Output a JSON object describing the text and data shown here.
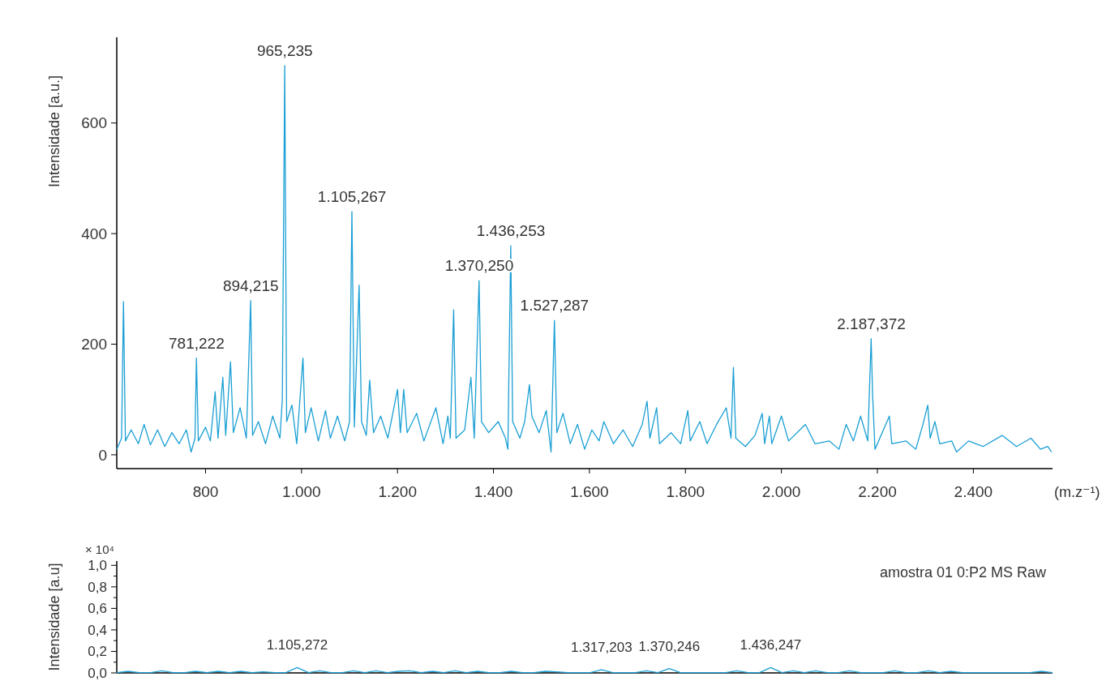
{
  "chart_data": [
    {
      "type": "line",
      "ylabel": "Intensidade [a.u.]",
      "xlabel": "(m.z⁻¹)",
      "xlim": [
        615,
        2565
      ],
      "ylim": [
        -25,
        755
      ],
      "xticks": [
        800,
        {
          "value": 1000,
          "label": "1.000"
        },
        {
          "value": 1200,
          "label": "1.200"
        },
        {
          "value": 1400,
          "label": "1.400"
        },
        {
          "value": 1600,
          "label": "1.600"
        },
        {
          "value": 1800,
          "label": "1.800"
        },
        {
          "value": 2000,
          "label": "2.000"
        },
        {
          "value": 2200,
          "label": "2.200"
        },
        {
          "value": 2400,
          "label": "2.400"
        }
      ],
      "yticks": [
        0,
        200,
        400,
        600
      ],
      "annotations": [
        {
          "text": "781,222",
          "x": 781.222,
          "y": 175
        },
        {
          "text": "894,215",
          "x": 894.215,
          "y": 279
        },
        {
          "text": "965,235",
          "x": 965.235,
          "y": 704
        },
        {
          "text": "1.105,267",
          "x": 1105.267,
          "y": 440
        },
        {
          "text": "1.370,250",
          "x": 1370.25,
          "y": 315
        },
        {
          "text": "1.436,253",
          "x": 1436.253,
          "y": 378
        },
        {
          "text": "1.527,287",
          "x": 1527.287,
          "y": 243
        },
        {
          "text": "2.187,372",
          "x": 2187.372,
          "y": 210
        }
      ],
      "series": [
        {
          "color": "#1a9fd4",
          "x": [
            615,
            625,
            629,
            633,
            645,
            660,
            672,
            685,
            700,
            715,
            730,
            745,
            760,
            770,
            778,
            781,
            785,
            800,
            810,
            820,
            826,
            836,
            842,
            852,
            858,
            872,
            885,
            894,
            898,
            910,
            925,
            940,
            955,
            960,
            965,
            969,
            980,
            990,
            1003,
            1008,
            1020,
            1035,
            1050,
            1060,
            1075,
            1090,
            1100,
            1105,
            1110,
            1120,
            1125,
            1135,
            1142,
            1150,
            1165,
            1180,
            1200,
            1206,
            1213,
            1220,
            1240,
            1255,
            1280,
            1295,
            1305,
            1310,
            1317,
            1322,
            1340,
            1353,
            1360,
            1370,
            1375,
            1390,
            1410,
            1425,
            1430,
            1436,
            1440,
            1455,
            1465,
            1475,
            1480,
            1495,
            1510,
            1520,
            1527,
            1532,
            1545,
            1560,
            1575,
            1590,
            1605,
            1620,
            1630,
            1650,
            1670,
            1690,
            1710,
            1720,
            1726,
            1740,
            1746,
            1770,
            1790,
            1805,
            1810,
            1830,
            1845,
            1865,
            1885,
            1895,
            1900,
            1905,
            1925,
            1945,
            1960,
            1965,
            1975,
            1980,
            2000,
            2015,
            2050,
            2070,
            2100,
            2120,
            2135,
            2150,
            2165,
            2180,
            2187,
            2190,
            2195,
            2210,
            2225,
            2230,
            2260,
            2280,
            2295,
            2305,
            2310,
            2320,
            2330,
            2355,
            2365,
            2390,
            2420,
            2460,
            2490,
            2520,
            2540,
            2555,
            2563
          ],
          "values": [
            10,
            30,
            277,
            25,
            45,
            20,
            55,
            18,
            45,
            15,
            40,
            20,
            45,
            5,
            30,
            175,
            25,
            50,
            25,
            114,
            30,
            140,
            35,
            168,
            40,
            85,
            30,
            279,
            35,
            60,
            20,
            70,
            30,
            100,
            704,
            60,
            90,
            20,
            175,
            40,
            85,
            25,
            80,
            30,
            70,
            25,
            60,
            440,
            50,
            307,
            60,
            35,
            135,
            40,
            70,
            30,
            118,
            40,
            118,
            40,
            75,
            25,
            85,
            20,
            70,
            30,
            262,
            30,
            45,
            140,
            30,
            315,
            60,
            40,
            60,
            30,
            10,
            378,
            60,
            30,
            60,
            127,
            70,
            40,
            80,
            5,
            243,
            40,
            75,
            20,
            55,
            10,
            45,
            25,
            60,
            20,
            45,
            15,
            55,
            97,
            30,
            85,
            20,
            40,
            20,
            80,
            25,
            60,
            20,
            55,
            85,
            30,
            158,
            30,
            15,
            35,
            75,
            20,
            70,
            20,
            70,
            25,
            55,
            20,
            25,
            10,
            55,
            25,
            70,
            25,
            210,
            110,
            10,
            40,
            70,
            20,
            25,
            10,
            55,
            90,
            30,
            60,
            20,
            25,
            5,
            25,
            15,
            35,
            15,
            30,
            10,
            15,
            5
          ]
        }
      ]
    },
    {
      "type": "line",
      "ylabel": "Intensidade [a.u]",
      "tick_labels": "y",
      "categories": [
        null,
        null,
        null,
        null,
        null,
        null,
        null,
        null,
        null,
        null,
        null,
        null,
        null,
        null,
        null,
        null,
        null,
        null,
        null,
        null,
        null,
        null,
        null,
        null,
        null,
        null,
        null,
        null,
        null,
        null,
        null,
        null,
        null,
        null,
        null,
        null,
        null,
        null,
        null,
        null,
        null,
        null,
        null,
        null,
        null,
        null,
        null,
        null,
        null,
        null,
        null,
        null,
        null,
        null,
        null,
        null,
        null,
        null,
        null,
        null,
        null,
        null,
        null,
        null,
        null,
        null,
        null,
        null,
        null,
        null,
        null,
        null,
        null,
        null,
        null,
        null,
        null,
        null,
        null,
        null,
        null,
        null,
        null,
        null
      ],
      "ylim": [
        0,
        1.04
      ],
      "yticks": [
        {
          "value": 0,
          "label": "0,0"
        },
        {
          "value": 0.1,
          "label": null
        },
        {
          "value": 0.2,
          "label": "0,2"
        },
        {
          "value": 0.3,
          "label": null
        },
        {
          "value": 0.4,
          "label": "0,4"
        },
        {
          "value": 0.5,
          "label": null
        },
        {
          "value": 0.6,
          "label": "0,6"
        },
        {
          "value": 0.7,
          "label": null
        },
        {
          "value": 0.8,
          "label": "0,8"
        },
        {
          "value": 0.9,
          "label": null
        },
        {
          "value": 1.0,
          "label": "1,0"
        }
      ],
      "annotations": [
        "× 10⁴",
        "amostra 01 0:P2 MS Raw",
        "1.105,272",
        "1.317,203",
        "1.370,246",
        "1.436,247"
      ],
      "series": [
        {
          "color": "#1a9fd4",
          "values": [
            0.003,
            0.015,
            0.003,
            0.003,
            0.02,
            0.003,
            0.003,
            0.015,
            0.003,
            0.015,
            0.003,
            0.015,
            0.003,
            0.01,
            0.003,
            0.003,
            0.05,
            0.003,
            0.02,
            0.003,
            0.003,
            0.02,
            0.003,
            0.02,
            0.003,
            0.015,
            0.02,
            0.003,
            0.015,
            0.003,
            0.02,
            0.003,
            0.015,
            0.003,
            0.003,
            0.015,
            0.003,
            0.003,
            0.015,
            0.01,
            0.003,
            0.003,
            0.003,
            0.03,
            0.003,
            0.003,
            0.003,
            0.02,
            0.003,
            0.04,
            0.003,
            0.003,
            0.003,
            0.003,
            0.003,
            0.02,
            0.003,
            0.003,
            0.05,
            0.003,
            0.02,
            0.003,
            0.02,
            0.003,
            0.003,
            0.02,
            0.003,
            0.003,
            0.003,
            0.02,
            0.003,
            0.003,
            0.02,
            0.003,
            0.015,
            0.003,
            0.003,
            0.003,
            0.003,
            0.003,
            0.003,
            0.003,
            0.015,
            0.003
          ]
        }
      ]
    }
  ]
}
